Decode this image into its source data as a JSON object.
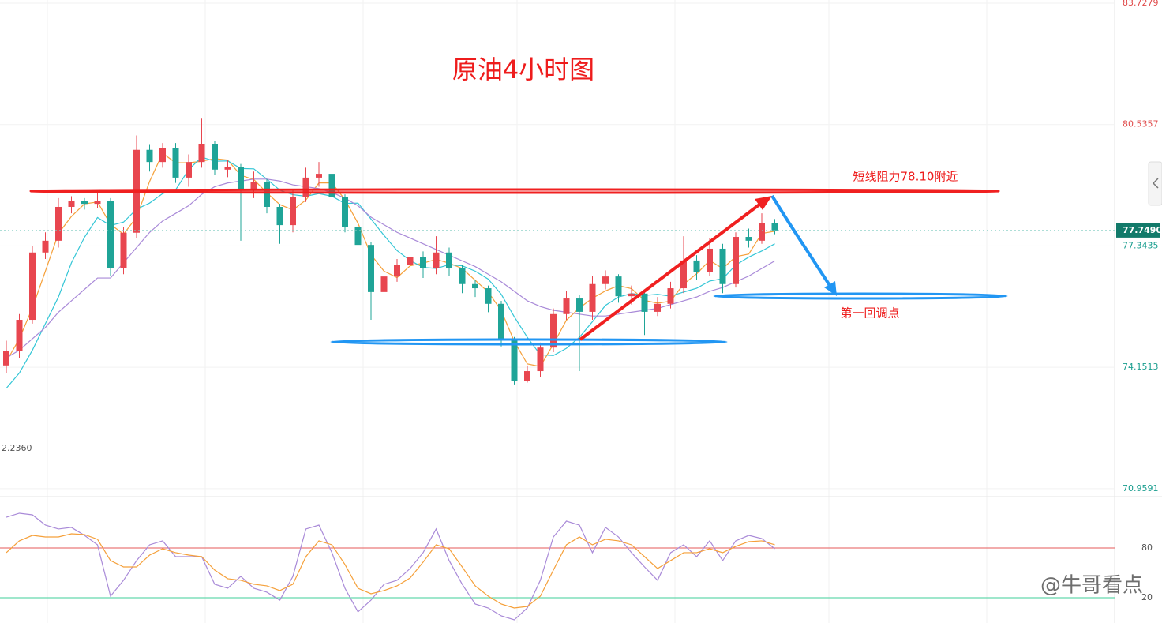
{
  "chart_data": [
    {
      "type": "candlestick",
      "title": "原油4小时图",
      "annotations": [
        "短线阻力78.10附近",
        "第一回调点"
      ],
      "watermark": "@牛哥看点",
      "left_label": "2.2360",
      "last_price": {
        "value": 77.749,
        "label": "77.7490"
      },
      "ylim": [
        70.77,
        83.81
      ],
      "yticks": [
        70.9591,
        74.1513,
        77.3435,
        80.5357,
        83.7279
      ],
      "grid": true,
      "up_color": "#e8464f",
      "down_color": "#1fa497",
      "open": [
        74.2,
        74.57,
        75.4,
        77.17,
        77.48,
        78.37,
        78.52,
        78.45,
        78.52,
        76.75,
        77.69,
        79.87,
        79.55,
        79.91,
        79.14,
        79.55,
        80.03,
        79.35,
        79.41,
        78.83,
        79.03,
        78.37,
        77.89,
        78.62,
        79.14,
        79.24,
        78.62,
        77.83,
        77.37,
        76.13,
        76.54,
        76.85,
        77.06,
        76.75,
        77.17,
        76.75,
        76.34,
        76.23,
        75.82,
        74.88,
        73.8,
        74.05,
        74.67,
        75.55,
        75.96,
        75.61,
        76.34,
        76.54,
        76.02,
        76.09,
        75.61,
        75.82,
        76.23,
        76.96,
        76.65,
        77.27,
        76.34,
        77.58,
        77.48,
        77.95
      ],
      "high": [
        74.85,
        75.55,
        77.35,
        77.7,
        78.6,
        78.65,
        78.6,
        78.75,
        78.6,
        77.85,
        80.25,
        80.0,
        80.05,
        80.05,
        79.75,
        80.69,
        80.1,
        79.6,
        79.5,
        79.3,
        79.1,
        78.45,
        78.8,
        79.4,
        79.55,
        79.35,
        78.7,
        77.95,
        77.45,
        76.65,
        77.0,
        77.25,
        77.2,
        77.6,
        77.3,
        76.85,
        76.45,
        76.3,
        75.9,
        74.95,
        74.2,
        74.8,
        75.7,
        76.15,
        76.05,
        76.55,
        76.7,
        76.6,
        76.3,
        76.2,
        76.0,
        76.4,
        77.6,
        77.1,
        77.55,
        77.4,
        77.7,
        77.8,
        78.2,
        78.05
      ],
      "low": [
        74.0,
        74.4,
        75.3,
        77.0,
        77.3,
        78.2,
        78.3,
        78.35,
        76.55,
        76.6,
        77.55,
        79.3,
        79.4,
        79.0,
        78.9,
        79.4,
        79.2,
        79.15,
        77.48,
        78.6,
        78.2,
        77.4,
        77.7,
        78.5,
        78.9,
        78.4,
        77.7,
        77.1,
        75.4,
        75.6,
        76.4,
        76.7,
        76.5,
        76.6,
        76.55,
        76.1,
        76.0,
        75.6,
        74.7,
        73.7,
        73.75,
        73.9,
        74.55,
        75.4,
        74.05,
        75.4,
        76.2,
        75.85,
        75.8,
        75.0,
        75.5,
        75.7,
        76.1,
        76.45,
        76.55,
        76.1,
        76.25,
        77.3,
        77.4,
        77.65
      ],
      "close": [
        74.57,
        75.4,
        77.17,
        77.48,
        78.37,
        78.52,
        78.45,
        78.52,
        76.75,
        77.69,
        79.87,
        79.55,
        79.91,
        79.14,
        79.55,
        80.03,
        79.35,
        79.41,
        78.83,
        79.03,
        78.37,
        77.89,
        78.62,
        79.14,
        79.24,
        78.62,
        77.83,
        77.37,
        76.13,
        76.54,
        76.85,
        77.06,
        76.75,
        77.17,
        76.75,
        76.34,
        76.23,
        75.82,
        74.88,
        73.8,
        74.05,
        74.67,
        75.55,
        75.96,
        75.61,
        76.34,
        76.54,
        76.02,
        76.09,
        75.61,
        75.82,
        76.23,
        76.96,
        76.65,
        77.27,
        76.34,
        77.58,
        77.48,
        77.95,
        77.75
      ],
      "series": [
        {
          "color": "#f5a03a",
          "values": [
            74.3,
            74.9,
            75.71,
            76.68,
            77.67,
            78.12,
            78.45,
            78.5,
            77.91,
            77.65,
            78.1,
            79.04,
            79.78,
            79.53,
            79.53,
            79.57,
            79.64,
            79.6,
            79.2,
            79.09,
            78.74,
            78.43,
            78.29,
            78.55,
            79.0,
            79.0,
            78.56,
            77.94,
            77.11,
            76.68,
            76.51,
            76.82,
            76.89,
            76.99,
            76.89,
            76.75,
            76.44,
            76.13,
            75.64,
            74.83,
            74.24,
            74.17,
            74.76,
            75.39,
            75.71,
            75.97,
            76.16,
            76.3,
            76.22,
            75.91,
            75.84,
            75.89,
            76.34,
            76.61,
            76.96,
            76.75,
            77.06,
            77.13,
            77.67,
            77.73
          ]
        },
        {
          "color": "#34c6d6",
          "values": [
            73.6,
            74.0,
            74.6,
            75.3,
            76.0,
            76.9,
            77.57,
            78.09,
            77.88,
            77.97,
            78.31,
            78.47,
            78.72,
            78.82,
            79.35,
            79.68,
            79.57,
            79.58,
            79.38,
            79.37,
            79.1,
            78.81,
            78.69,
            78.65,
            78.72,
            78.65,
            78.46,
            78.47,
            78.05,
            77.62,
            77.22,
            76.96,
            76.78,
            76.75,
            76.85,
            76.82,
            76.68,
            76.47,
            76.07,
            75.48,
            74.94,
            74.48,
            74.46,
            74.65,
            74.94,
            75.35,
            75.78,
            76.0,
            76.09,
            76.04,
            76.07,
            76.02,
            76.13,
            76.23,
            76.42,
            76.48,
            76.84,
            77.05,
            77.21,
            77.4
          ]
        },
        {
          "color": "#a98ad8",
          "values": [
            74.4,
            74.6,
            74.9,
            75.2,
            75.6,
            75.9,
            76.2,
            76.5,
            76.5,
            76.9,
            77.3,
            77.7,
            78.0,
            78.2,
            78.4,
            78.7,
            78.9,
            79.0,
            79.05,
            79.1,
            79.1,
            79.05,
            78.95,
            78.9,
            78.85,
            78.75,
            78.6,
            78.4,
            78.1,
            77.9,
            77.7,
            77.55,
            77.4,
            77.25,
            77.1,
            76.95,
            76.8,
            76.6,
            76.4,
            76.15,
            75.9,
            75.75,
            75.65,
            75.6,
            75.55,
            75.5,
            75.5,
            75.55,
            75.6,
            75.65,
            75.7,
            75.8,
            75.9,
            76.0,
            76.15,
            76.25,
            76.4,
            76.55,
            76.75,
            76.95
          ]
        }
      ]
    },
    {
      "type": "line",
      "ylim": [
        -10.5,
        131.4
      ],
      "yticks": [
        20,
        80
      ],
      "ytick_colors": [
        "#3fcf9a",
        "#e65a5a"
      ],
      "series": [
        {
          "color": "#a98ad8",
          "values": [
            117.1,
            121.9,
            120,
            107.6,
            102.9,
            104.8,
            95.2,
            83.8,
            21.9,
            41,
            64.8,
            83.8,
            88.6,
            69.5,
            69.5,
            69.5,
            36.2,
            31.4,
            45.7,
            31.4,
            26.7,
            17.1,
            45.7,
            102.9,
            107.6,
            74.3,
            31.4,
            2.9,
            17.1,
            36.2,
            41,
            55.2,
            74.3,
            102.9,
            64.8,
            36.2,
            12.4,
            7.6,
            -1.9,
            -6.7,
            7.6,
            41,
            93.3,
            112.4,
            107.6,
            74.3,
            104.8,
            93.3,
            74.3,
            57.1,
            41,
            74.3,
            83.8,
            69.5,
            88.6,
            64.8,
            88.6,
            95.2,
            91.4,
            79
          ]
        },
        {
          "color": "#f5a03a",
          "values": [
            74.3,
            88.6,
            95.2,
            93.3,
            93.3,
            97.1,
            96.2,
            90.5,
            64.8,
            57.1,
            57.1,
            71.4,
            79,
            74.3,
            71.4,
            69.5,
            53.3,
            42.9,
            41,
            36.2,
            34.3,
            28.6,
            36.2,
            69.5,
            88.6,
            83.8,
            60,
            31.4,
            24.8,
            28.6,
            34.3,
            43.8,
            62.9,
            83.8,
            79,
            57.1,
            34.3,
            21.9,
            12.4,
            7.6,
            9.5,
            21.9,
            53.3,
            83.8,
            93.3,
            83.8,
            90.5,
            88.6,
            83.8,
            69.5,
            55.2,
            64.8,
            74.3,
            74.3,
            79,
            74.3,
            81.9,
            87.6,
            88.6,
            83.8
          ]
        }
      ]
    }
  ]
}
